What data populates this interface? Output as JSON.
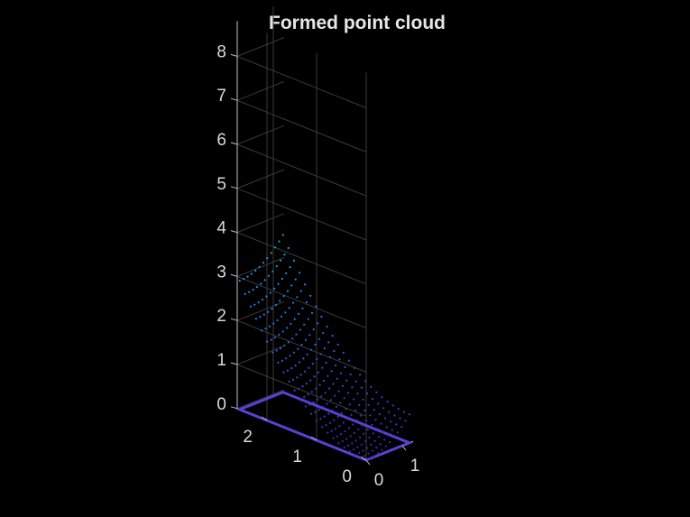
{
  "colors": {
    "background": "#000000",
    "grid": "#3a3a3a",
    "axis": "#bfbfbf",
    "text": "#e6e6e6",
    "base_plane": "#5b3fd6"
  },
  "chart_data": {
    "type": "scatter",
    "title": "Formed point cloud",
    "subtype": "3d-point-cloud",
    "xlabel": "",
    "ylabel": "",
    "zlabel": "",
    "xlim": [
      0,
      1.3
    ],
    "ylim": [
      0,
      2.6
    ],
    "zlim": [
      0,
      8.8
    ],
    "x_ticks": [
      "0",
      "1"
    ],
    "y_ticks": [
      "0",
      "1",
      "2"
    ],
    "z_ticks": [
      "0",
      "1",
      "2",
      "3",
      "4",
      "5",
      "6",
      "7",
      "8"
    ],
    "grid": true,
    "colormap": "parula",
    "surface": "z = 0.45 * (x^2 + y^2)",
    "x_samples": 12,
    "y_samples": 24,
    "x_range": [
      0,
      1.2
    ],
    "y_range": [
      0,
      2.55
    ],
    "base_plane_z": 0
  }
}
